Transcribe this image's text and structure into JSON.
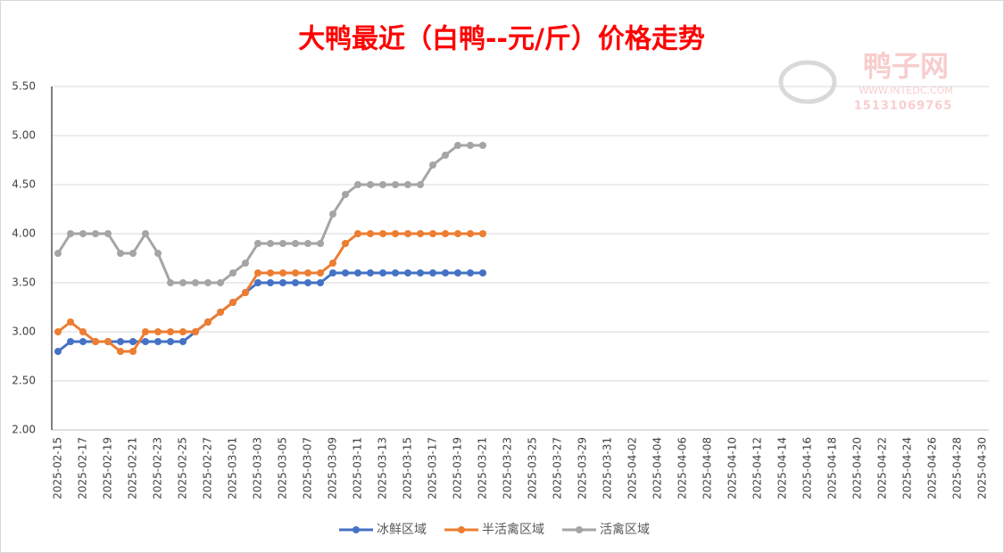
{
  "chart_data": {
    "type": "line",
    "title": "大鸭最近（白鸭--元/斤）价格走势",
    "watermark": {
      "brand": "鸭子网",
      "url": "WWW.INTEDC.COM",
      "phone": "15131069765"
    },
    "categories": [
      "2025-02-15",
      null,
      "2025-02-17",
      null,
      "2025-02-19",
      null,
      "2025-02-21",
      null,
      "2025-02-23",
      null,
      "2025-02-25",
      null,
      "2025-02-27",
      null,
      "2025-03-01",
      null,
      "2025-03-03",
      null,
      "2025-03-05",
      null,
      "2025-03-07",
      null,
      "2025-03-09",
      null,
      "2025-03-11",
      null,
      "2025-03-13",
      null,
      "2025-03-15",
      null,
      "2025-03-17",
      null,
      "2025-03-19",
      null,
      "2025-03-21",
      null,
      "2025-03-23",
      null,
      "2025-03-25",
      null,
      "2025-03-27",
      null,
      "2025-03-29",
      null,
      "2025-03-31",
      null,
      "2025-04-02",
      null,
      "2025-04-04",
      null,
      "2025-04-06",
      null,
      "2025-04-08",
      null,
      "2025-04-10",
      null,
      "2025-04-12",
      null,
      "2025-04-14",
      null,
      "2025-04-16",
      null,
      "2025-04-18",
      null,
      "2025-04-20",
      null,
      "2025-04-22",
      null,
      "2025-04-24",
      null,
      "2025-04-26",
      null,
      "2025-04-28",
      null,
      "2025-04-30"
    ],
    "series": [
      {
        "name": "冰鲜区域",
        "color": "#4472c4",
        "values": [
          2.8,
          2.9,
          2.9,
          2.9,
          2.9,
          2.9,
          2.9,
          2.9,
          2.9,
          2.9,
          2.9,
          3.0,
          3.1,
          3.2,
          3.3,
          3.4,
          3.5,
          3.5,
          3.5,
          3.5,
          3.5,
          3.5,
          3.6,
          3.6,
          3.6,
          3.6,
          3.6,
          3.6,
          3.6,
          3.6,
          3.6,
          3.6,
          3.6,
          3.6,
          3.6,
          null,
          null,
          null,
          null,
          null,
          null,
          null,
          null,
          null,
          null,
          null,
          null,
          null,
          null,
          null,
          null,
          null,
          null,
          null,
          null,
          null,
          null,
          null,
          null,
          null,
          null,
          null,
          null,
          null,
          null,
          null,
          null,
          null,
          null,
          null,
          null,
          null,
          null,
          null,
          null
        ]
      },
      {
        "name": "半活禽区域",
        "color": "#ed7d31",
        "values": [
          3.0,
          3.1,
          3.0,
          2.9,
          2.9,
          2.8,
          2.8,
          3.0,
          3.0,
          3.0,
          3.0,
          3.0,
          3.1,
          3.2,
          3.3,
          3.4,
          3.6,
          3.6,
          3.6,
          3.6,
          3.6,
          3.6,
          3.7,
          3.9,
          4.0,
          4.0,
          4.0,
          4.0,
          4.0,
          4.0,
          4.0,
          4.0,
          4.0,
          4.0,
          4.0,
          null,
          null,
          null,
          null,
          null,
          null,
          null,
          null,
          null,
          null,
          null,
          null,
          null,
          null,
          null,
          null,
          null,
          null,
          null,
          null,
          null,
          null,
          null,
          null,
          null,
          null,
          null,
          null,
          null,
          null,
          null,
          null,
          null,
          null,
          null,
          null,
          null,
          null,
          null,
          null
        ]
      },
      {
        "name": "活禽区域",
        "color": "#a5a5a5",
        "values": [
          3.8,
          4.0,
          4.0,
          4.0,
          4.0,
          3.8,
          3.8,
          4.0,
          3.8,
          3.5,
          3.5,
          3.5,
          3.5,
          3.5,
          3.6,
          3.7,
          3.9,
          3.9,
          3.9,
          3.9,
          3.9,
          3.9,
          4.2,
          4.4,
          4.5,
          4.5,
          4.5,
          4.5,
          4.5,
          4.5,
          4.7,
          4.8,
          4.9,
          4.9,
          4.9,
          null,
          null,
          null,
          null,
          null,
          null,
          null,
          null,
          null,
          null,
          null,
          null,
          null,
          null,
          null,
          null,
          null,
          null,
          null,
          null,
          null,
          null,
          null,
          null,
          null,
          null,
          null,
          null,
          null,
          null,
          null,
          null,
          null,
          null,
          null,
          null,
          null,
          null,
          null,
          null
        ]
      }
    ],
    "ylim": [
      2.0,
      5.5
    ],
    "yticks": [
      {
        "value": 2.0,
        "label": "2.00"
      },
      {
        "value": 2.5,
        "label": "2.50"
      },
      {
        "value": 3.0,
        "label": "3.00"
      },
      {
        "value": 3.5,
        "label": "3.50"
      },
      {
        "value": 4.0,
        "label": "4.00"
      },
      {
        "value": 4.5,
        "label": "4.50"
      },
      {
        "value": 5.0,
        "label": "5.00"
      },
      {
        "value": 5.5,
        "label": "5.50"
      }
    ],
    "grid": true,
    "legend": "bottom"
  }
}
